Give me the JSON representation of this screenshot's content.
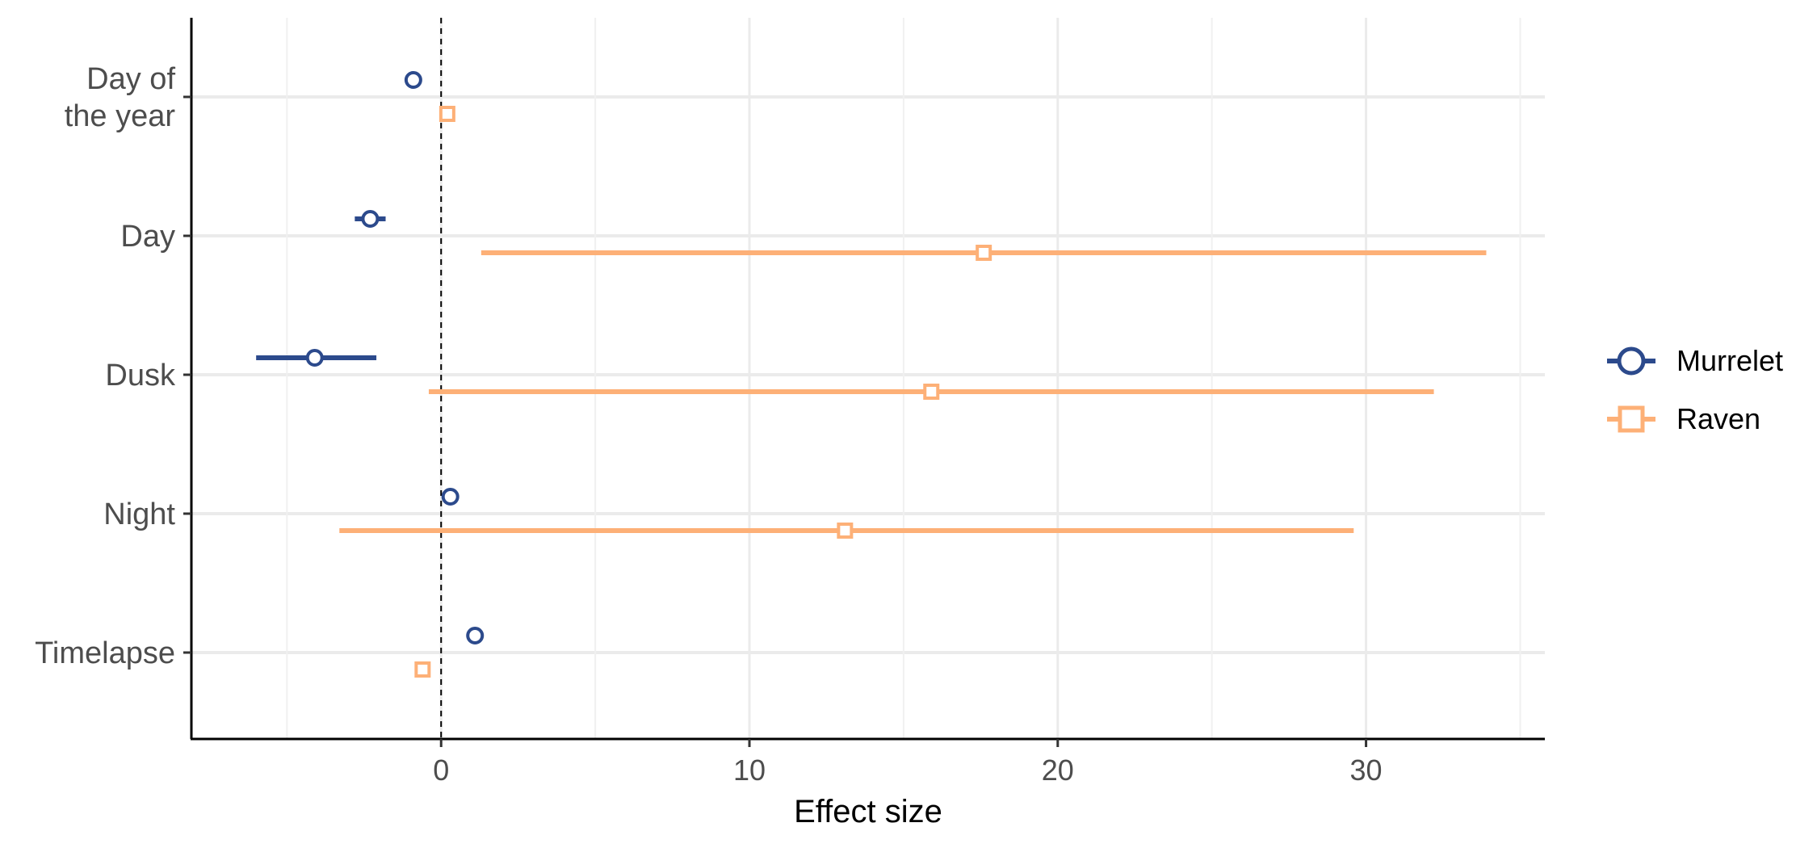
{
  "chart_data": {
    "type": "forest",
    "xlabel": "Effect size",
    "ylabel": "",
    "xlim": [
      -8.1,
      35.8
    ],
    "xticks": [
      0,
      10,
      20,
      30
    ],
    "x_minor_gridlines": [
      -5,
      5,
      15,
      25,
      35
    ],
    "reference_line": {
      "x": 0,
      "style": "dashed"
    },
    "grid": true,
    "legend_position": "right",
    "categories": [
      {
        "lines": [
          "Day of",
          "the year"
        ]
      },
      {
        "lines": [
          "Day"
        ]
      },
      {
        "lines": [
          "Dusk"
        ]
      },
      {
        "lines": [
          "Night"
        ]
      },
      {
        "lines": [
          "Timelapse"
        ]
      }
    ],
    "series": [
      {
        "name": "Murrelet",
        "color": "#2c4a8c",
        "marker": "circle",
        "points": [
          {
            "category": "Day of the year",
            "estimate": -0.9,
            "lower": -0.9,
            "upper": -0.9
          },
          {
            "category": "Day",
            "estimate": -2.3,
            "lower": -2.8,
            "upper": -1.8
          },
          {
            "category": "Dusk",
            "estimate": -4.1,
            "lower": -6.0,
            "upper": -2.1
          },
          {
            "category": "Night",
            "estimate": 0.3,
            "lower": 0.3,
            "upper": 0.3
          },
          {
            "category": "Timelapse",
            "estimate": 1.1,
            "lower": 1.1,
            "upper": 1.1
          }
        ]
      },
      {
        "name": "Raven",
        "color": "#fdb077",
        "marker": "square",
        "points": [
          {
            "category": "Day of the year",
            "estimate": 0.2,
            "lower": 0.2,
            "upper": 0.2
          },
          {
            "category": "Day",
            "estimate": 17.6,
            "lower": 1.3,
            "upper": 33.9
          },
          {
            "category": "Dusk",
            "estimate": 15.9,
            "lower": -0.4,
            "upper": 32.2
          },
          {
            "category": "Night",
            "estimate": 13.1,
            "lower": -3.3,
            "upper": 29.6
          },
          {
            "category": "Timelapse",
            "estimate": -0.6,
            "lower": -0.6,
            "upper": -0.6
          }
        ]
      }
    ]
  }
}
